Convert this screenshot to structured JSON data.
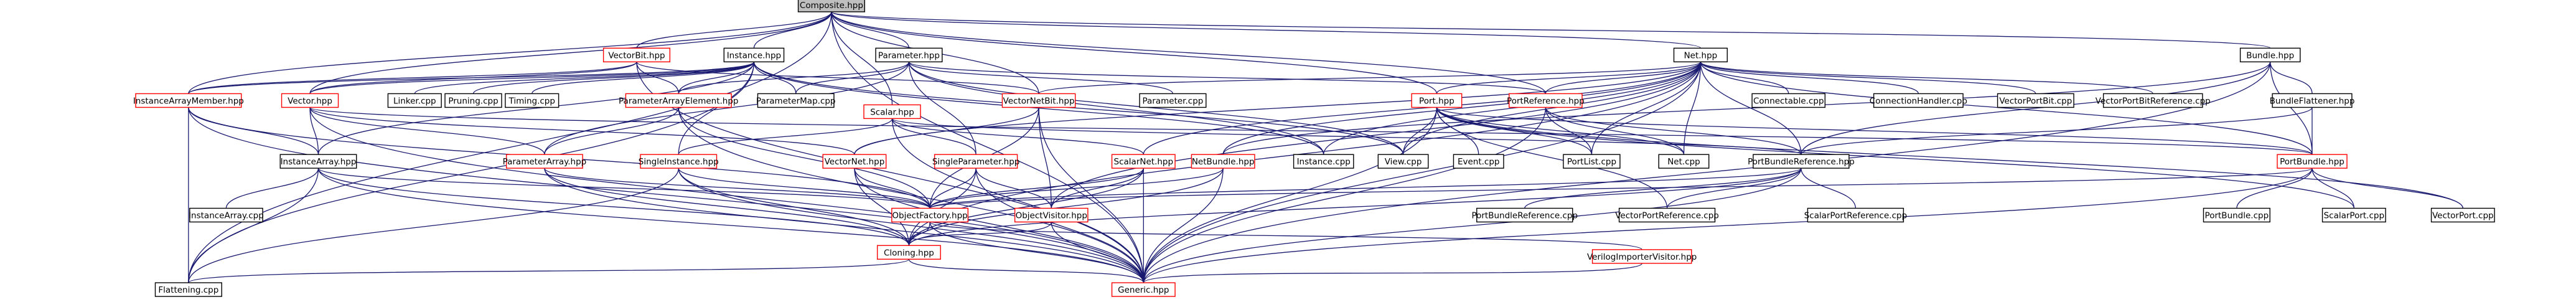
{
  "graph": {
    "edge_color": "#191970",
    "border_colors": {
      "black": "#000000",
      "red": "#ff0000",
      "focus_fill": "#bfbfbf"
    },
    "nodes": [
      {
        "id": "composite",
        "label": "Composite.hpp",
        "style": "focus"
      },
      {
        "id": "vectorbit",
        "label": "VectorBit.hpp",
        "style": "red"
      },
      {
        "id": "instance",
        "label": "Instance.hpp",
        "style": "black"
      },
      {
        "id": "parameter",
        "label": "Parameter.hpp",
        "style": "black"
      },
      {
        "id": "net",
        "label": "Net.hpp",
        "style": "black"
      },
      {
        "id": "bundle",
        "label": "Bundle.hpp",
        "style": "black"
      },
      {
        "id": "instancearraymember",
        "label": "InstanceArrayMember.hpp",
        "style": "red"
      },
      {
        "id": "vector",
        "label": "Vector.hpp",
        "style": "red"
      },
      {
        "id": "linker",
        "label": "Linker.cpp",
        "style": "black"
      },
      {
        "id": "pruning",
        "label": "Pruning.cpp",
        "style": "black"
      },
      {
        "id": "timing",
        "label": "Timing.cpp",
        "style": "black"
      },
      {
        "id": "parameterarrayelement",
        "label": "ParameterArrayElement.hpp",
        "style": "red"
      },
      {
        "id": "parametermap",
        "label": "ParameterMap.cpp",
        "style": "black"
      },
      {
        "id": "scalar",
        "label": "Scalar.hpp",
        "style": "red"
      },
      {
        "id": "vectornetbit",
        "label": "VectorNetBit.hpp",
        "style": "red"
      },
      {
        "id": "parametercpp",
        "label": "Parameter.cpp",
        "style": "black"
      },
      {
        "id": "port",
        "label": "Port.hpp",
        "style": "red"
      },
      {
        "id": "portreference",
        "label": "PortReference.hpp",
        "style": "red"
      },
      {
        "id": "connectable",
        "label": "Connectable.cpp",
        "style": "black"
      },
      {
        "id": "connectionhandler",
        "label": "ConnectionHandler.cpp",
        "style": "black"
      },
      {
        "id": "vectorportbit",
        "label": "VectorPortBit.cpp",
        "style": "black"
      },
      {
        "id": "vectorportbitreference",
        "label": "VectorPortBitReference.cpp",
        "style": "black"
      },
      {
        "id": "bundleflattener",
        "label": "BundleFlattener.hpp",
        "style": "black"
      },
      {
        "id": "instancearray",
        "label": "InstanceArray.hpp",
        "style": "black"
      },
      {
        "id": "parameterarray",
        "label": "ParameterArray.hpp",
        "style": "red"
      },
      {
        "id": "singleinstance",
        "label": "SingleInstance.hpp",
        "style": "red"
      },
      {
        "id": "vectornet",
        "label": "VectorNet.hpp",
        "style": "red"
      },
      {
        "id": "singleparameter",
        "label": "SingleParameter.hpp",
        "style": "red"
      },
      {
        "id": "scalarnet",
        "label": "ScalarNet.hpp",
        "style": "red"
      },
      {
        "id": "netbundle",
        "label": "NetBundle.hpp",
        "style": "red"
      },
      {
        "id": "instancecpp",
        "label": "Instance.cpp",
        "style": "black"
      },
      {
        "id": "view",
        "label": "View.cpp",
        "style": "black"
      },
      {
        "id": "event",
        "label": "Event.cpp",
        "style": "black"
      },
      {
        "id": "portlist",
        "label": "PortList.cpp",
        "style": "black"
      },
      {
        "id": "netcpp",
        "label": "Net.cpp",
        "style": "black"
      },
      {
        "id": "portbundlereference",
        "label": "PortBundleReference.hpp",
        "style": "black"
      },
      {
        "id": "portbundle",
        "label": "PortBundle.hpp",
        "style": "red"
      },
      {
        "id": "instancearraycpp",
        "label": "InstanceArray.cpp",
        "style": "black"
      },
      {
        "id": "objectfactory",
        "label": "ObjectFactory.hpp",
        "style": "red"
      },
      {
        "id": "objectvisitor",
        "label": "ObjectVisitor.hpp",
        "style": "red"
      },
      {
        "id": "portbundlereferencecpp",
        "label": "PortBundleReference.cpp",
        "style": "black"
      },
      {
        "id": "vectorportreference",
        "label": "VectorPortReference.cpp",
        "style": "black"
      },
      {
        "id": "scalarportreference",
        "label": "ScalarPortReference.cpp",
        "style": "black"
      },
      {
        "id": "portbundlecpp",
        "label": "PortBundle.cpp",
        "style": "black"
      },
      {
        "id": "scalarport",
        "label": "ScalarPort.cpp",
        "style": "black"
      },
      {
        "id": "vectorport",
        "label": "VectorPort.cpp",
        "style": "black"
      },
      {
        "id": "cloning",
        "label": "Cloning.hpp",
        "style": "red"
      },
      {
        "id": "verilogimportervisitor",
        "label": "VerilogImporterVisitor.hpp",
        "style": "red"
      },
      {
        "id": "flattening",
        "label": "Flattening.cpp",
        "style": "black"
      },
      {
        "id": "generic",
        "label": "Generic.hpp",
        "style": "red"
      }
    ],
    "edges": [
      [
        "composite",
        "vectorbit"
      ],
      [
        "composite",
        "instance"
      ],
      [
        "composite",
        "parameter"
      ],
      [
        "composite",
        "net"
      ],
      [
        "composite",
        "bundle"
      ],
      [
        "composite",
        "scalar"
      ],
      [
        "composite",
        "vectornetbit"
      ],
      [
        "composite",
        "port"
      ],
      [
        "composite",
        "portreference"
      ],
      [
        "composite",
        "flattening"
      ],
      [
        "composite",
        "generic"
      ],
      [
        "composite",
        "instancearraymember"
      ],
      [
        "composite",
        "vector"
      ],
      [
        "vectorbit",
        "instancearraymember"
      ],
      [
        "vectorbit",
        "parameterarrayelement"
      ],
      [
        "vectorbit",
        "vectornetbit"
      ],
      [
        "vectorbit",
        "vector"
      ],
      [
        "vectorbit",
        "generic"
      ],
      [
        "instance",
        "instancearraymember"
      ],
      [
        "instance",
        "vector"
      ],
      [
        "instance",
        "linker"
      ],
      [
        "instance",
        "pruning"
      ],
      [
        "instance",
        "timing"
      ],
      [
        "instance",
        "parameterarrayelement"
      ],
      [
        "instance",
        "parametermap"
      ],
      [
        "instance",
        "instancearray"
      ],
      [
        "instance",
        "singleinstance"
      ],
      [
        "instance",
        "instancecpp"
      ],
      [
        "instance",
        "view"
      ],
      [
        "instance",
        "flattening"
      ],
      [
        "parameter",
        "parameterarrayelement"
      ],
      [
        "parameter",
        "parametermap"
      ],
      [
        "parameter",
        "parametercpp"
      ],
      [
        "parameter",
        "parameterarray"
      ],
      [
        "parameter",
        "singleparameter"
      ],
      [
        "parameter",
        "view"
      ],
      [
        "parameter",
        "instancecpp"
      ],
      [
        "parameter",
        "portreference"
      ],
      [
        "net",
        "vectornetbit"
      ],
      [
        "net",
        "port"
      ],
      [
        "net",
        "portreference"
      ],
      [
        "net",
        "connectable"
      ],
      [
        "net",
        "connectionhandler"
      ],
      [
        "net",
        "vectorportbit"
      ],
      [
        "net",
        "vectorportbitreference"
      ],
      [
        "net",
        "vectornet"
      ],
      [
        "net",
        "scalarnet"
      ],
      [
        "net",
        "netbundle"
      ],
      [
        "net",
        "view"
      ],
      [
        "net",
        "portlist"
      ],
      [
        "net",
        "netcpp"
      ],
      [
        "net",
        "instancecpp"
      ],
      [
        "net",
        "portbundlereference"
      ],
      [
        "net",
        "portbundle"
      ],
      [
        "net",
        "objectvisitor"
      ],
      [
        "net",
        "cloning"
      ],
      [
        "net",
        "generic"
      ],
      [
        "bundle",
        "bundleflattener"
      ],
      [
        "bundle",
        "netbundle"
      ],
      [
        "bundle",
        "portbundle"
      ],
      [
        "bundle",
        "portbundlereference"
      ],
      [
        "bundle",
        "generic"
      ],
      [
        "instancearraymember",
        "instancearray"
      ],
      [
        "instancearraymember",
        "objectfactory"
      ],
      [
        "instancearraymember",
        "flattening"
      ],
      [
        "instancearraymember",
        "generic"
      ],
      [
        "vector",
        "instancearray"
      ],
      [
        "vector",
        "parameterarray"
      ],
      [
        "vector",
        "vectornet"
      ],
      [
        "vector",
        "portbundle"
      ],
      [
        "vector",
        "generic"
      ],
      [
        "parameterarrayelement",
        "parameterarray"
      ],
      [
        "parameterarrayelement",
        "objectfactory"
      ],
      [
        "parameterarrayelement",
        "generic"
      ],
      [
        "scalar",
        "singleinstance"
      ],
      [
        "scalar",
        "scalarnet"
      ],
      [
        "scalar",
        "singleparameter"
      ],
      [
        "scalar",
        "portbundlereference"
      ],
      [
        "scalar",
        "generic"
      ],
      [
        "vectornetbit",
        "objectfactory"
      ],
      [
        "vectornetbit",
        "objectvisitor"
      ],
      [
        "vectornetbit",
        "generic"
      ],
      [
        "vectornetbit",
        "vectornet"
      ],
      [
        "port",
        "event"
      ],
      [
        "port",
        "view"
      ],
      [
        "port",
        "portlist"
      ],
      [
        "port",
        "netcpp"
      ],
      [
        "port",
        "portbundle"
      ],
      [
        "port",
        "generic"
      ],
      [
        "port",
        "vectorportreference"
      ],
      [
        "port",
        "scalarport"
      ],
      [
        "port",
        "vectorport"
      ],
      [
        "portreference",
        "portbundlereference"
      ],
      [
        "portreference",
        "portlist"
      ],
      [
        "portreference",
        "netcpp"
      ],
      [
        "portreference",
        "generic"
      ],
      [
        "bundleflattener",
        "portbundlereference"
      ],
      [
        "bundleflattener",
        "portbundle"
      ],
      [
        "instancearray",
        "instancearraycpp"
      ],
      [
        "instancearray",
        "objectfactory"
      ],
      [
        "instancearray",
        "cloning"
      ],
      [
        "instancearray",
        "flattening"
      ],
      [
        "instancearray",
        "generic"
      ],
      [
        "parameterarray",
        "objectfactory"
      ],
      [
        "parameterarray",
        "cloning"
      ],
      [
        "parameterarray",
        "generic"
      ],
      [
        "singleinstance",
        "objectfactory"
      ],
      [
        "singleinstance",
        "cloning"
      ],
      [
        "singleinstance",
        "flattening"
      ],
      [
        "singleinstance",
        "generic"
      ],
      [
        "vectornet",
        "objectfactory"
      ],
      [
        "vectornet",
        "cloning"
      ],
      [
        "vectornet",
        "generic"
      ],
      [
        "singleparameter",
        "objectfactory"
      ],
      [
        "singleparameter",
        "objectvisitor"
      ],
      [
        "singleparameter",
        "cloning"
      ],
      [
        "singleparameter",
        "generic"
      ],
      [
        "scalarnet",
        "objectfactory"
      ],
      [
        "scalarnet",
        "objectvisitor"
      ],
      [
        "scalarnet",
        "cloning"
      ],
      [
        "scalarnet",
        "generic"
      ],
      [
        "netbundle",
        "objectfactory"
      ],
      [
        "netbundle",
        "cloning"
      ],
      [
        "netbundle",
        "generic"
      ],
      [
        "portbundlereference",
        "portbundlereferencecpp"
      ],
      [
        "portbundlereference",
        "vectorportreference"
      ],
      [
        "portbundlereference",
        "scalarportreference"
      ],
      [
        "portbundlereference",
        "objectfactory"
      ],
      [
        "portbundlereference",
        "cloning"
      ],
      [
        "portbundlereference",
        "generic"
      ],
      [
        "portbundle",
        "portbundlecpp"
      ],
      [
        "portbundle",
        "scalarport"
      ],
      [
        "portbundle",
        "vectorport"
      ],
      [
        "portbundle",
        "objectfactory"
      ],
      [
        "portbundle",
        "generic"
      ],
      [
        "objectfactory",
        "cloning"
      ],
      [
        "objectfactory",
        "verilogimportervisitor"
      ],
      [
        "objectfactory",
        "generic"
      ],
      [
        "objectvisitor",
        "cloning"
      ],
      [
        "objectvisitor",
        "generic"
      ],
      [
        "cloning",
        "flattening"
      ],
      [
        "cloning",
        "generic"
      ],
      [
        "verilogimportervisitor",
        "generic"
      ]
    ]
  }
}
